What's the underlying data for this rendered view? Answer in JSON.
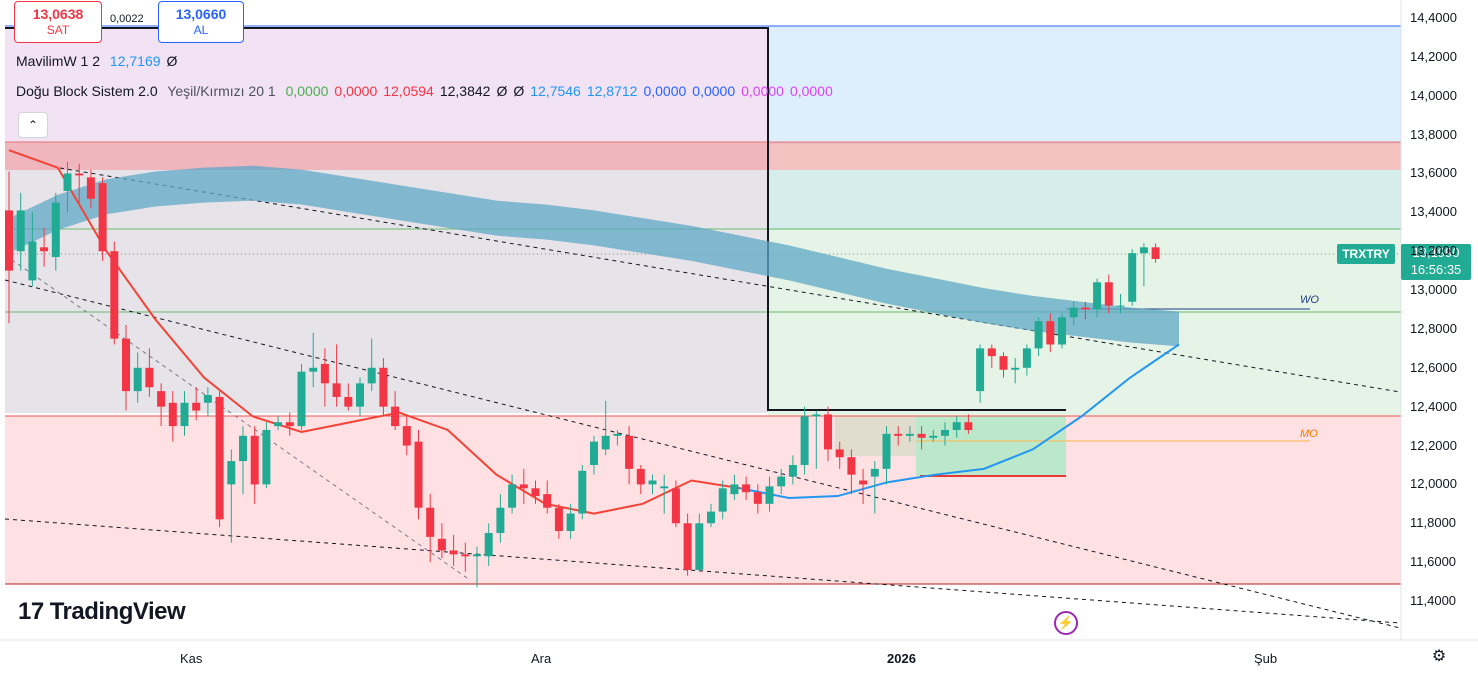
{
  "trade": {
    "sell_price": "13,0638",
    "sell_label": "SAT",
    "spread": "0,0022",
    "buy_price": "13,0660",
    "buy_label": "AL"
  },
  "indicators": [
    {
      "name": "MavilimW 1 2",
      "values": [
        {
          "text": "12,7169",
          "color": "#2196f3"
        },
        {
          "text": "Ø",
          "color": "#131722"
        }
      ]
    },
    {
      "name": "Doğu Block Sistem 2.0",
      "params": "Yeşil/Kırmızı 20 1",
      "values": [
        {
          "text": "0,0000",
          "color": "#4caf50"
        },
        {
          "text": "0,0000",
          "color": "#f23645"
        },
        {
          "text": "12,0594",
          "color": "#f23645"
        },
        {
          "text": "12,3842",
          "color": "#131722"
        },
        {
          "text": "Ø",
          "color": "#131722"
        },
        {
          "text": "Ø",
          "color": "#131722"
        },
        {
          "text": "12,7546",
          "color": "#2196f3"
        },
        {
          "text": "12,8712",
          "color": "#2196f3"
        },
        {
          "text": "0,0000",
          "color": "#2962ff"
        },
        {
          "text": "0,0000",
          "color": "#2962ff"
        },
        {
          "text": "0,0000",
          "color": "#e040fb"
        },
        {
          "text": "0,0000",
          "color": "#e040fb"
        }
      ]
    }
  ],
  "collapse_icon": "chevron-up-icon",
  "logo_text": "TradingView",
  "ticker": "TRXTRY",
  "last_price": "13,1990",
  "countdown": "16:56:35",
  "level_labels": {
    "upper": "WO",
    "lower": "MO"
  },
  "colors": {
    "up": "#22ab94",
    "down": "#f23645",
    "accent": "#2962ff",
    "mavilim": "#2196f3"
  },
  "chart_data": {
    "type": "candlestick",
    "y_ticks": [
      "14,4000",
      "14,2000",
      "14,0000",
      "13,8000",
      "13,6000",
      "13,4000",
      "13,2000",
      "13,0000",
      "12,8000",
      "12,6000",
      "12,4000",
      "12,2000",
      "12,0000",
      "11,8000",
      "11,6000",
      "11,4000"
    ],
    "ylim": [
      11.22,
      14.51
    ],
    "x_labels": [
      "Kas",
      "Ara",
      "2026",
      "Şub"
    ],
    "candles": [
      [
        13.41,
        13.1,
        13.61,
        12.83
      ],
      [
        13.2,
        13.41,
        13.5,
        13.1
      ],
      [
        13.05,
        13.25,
        13.4,
        13.02
      ],
      [
        13.22,
        13.2,
        13.32,
        13.12
      ],
      [
        13.17,
        13.45,
        13.5,
        13.1
      ],
      [
        13.51,
        13.6,
        13.66,
        13.4
      ],
      [
        13.6,
        13.59,
        13.65,
        13.45
      ],
      [
        13.58,
        13.47,
        13.62,
        13.42
      ],
      [
        13.55,
        13.2,
        13.58,
        13.15
      ],
      [
        13.2,
        12.75,
        13.25,
        12.72
      ],
      [
        12.75,
        12.48,
        12.82,
        12.38
      ],
      [
        12.48,
        12.6,
        12.68,
        12.42
      ],
      [
        12.6,
        12.5,
        12.7,
        12.45
      ],
      [
        12.48,
        12.4,
        12.52,
        12.3
      ],
      [
        12.42,
        12.3,
        12.48,
        12.22
      ],
      [
        12.3,
        12.42,
        12.48,
        12.25
      ],
      [
        12.42,
        12.38,
        12.5,
        12.33
      ],
      [
        12.42,
        12.46,
        12.5,
        12.35
      ],
      [
        12.45,
        11.82,
        12.48,
        11.78
      ],
      [
        12.0,
        12.12,
        12.18,
        11.7
      ],
      [
        12.12,
        12.25,
        12.3,
        11.95
      ],
      [
        12.25,
        12.0,
        12.3,
        11.9
      ],
      [
        12.0,
        12.28,
        12.32,
        11.98
      ],
      [
        12.3,
        12.32,
        12.35,
        12.28
      ],
      [
        12.32,
        12.3,
        12.37,
        12.25
      ],
      [
        12.3,
        12.58,
        12.62,
        12.28
      ],
      [
        12.58,
        12.6,
        12.78,
        12.5
      ],
      [
        12.62,
        12.52,
        12.7,
        12.4
      ],
      [
        12.52,
        12.45,
        12.72,
        12.4
      ],
      [
        12.45,
        12.4,
        12.52,
        12.38
      ],
      [
        12.4,
        12.52,
        12.55,
        12.35
      ],
      [
        12.52,
        12.6,
        12.75,
        12.48
      ],
      [
        12.6,
        12.4,
        12.65,
        12.35
      ],
      [
        12.4,
        12.3,
        12.48,
        12.28
      ],
      [
        12.3,
        12.2,
        12.35,
        12.15
      ],
      [
        12.22,
        11.88,
        12.28,
        11.82
      ],
      [
        11.88,
        11.73,
        11.95,
        11.6
      ],
      [
        11.72,
        11.66,
        11.8,
        11.62
      ],
      [
        11.66,
        11.64,
        11.74,
        11.58
      ],
      [
        11.64,
        11.63,
        11.7,
        11.55
      ],
      [
        11.63,
        11.64,
        11.68,
        11.47
      ],
      [
        11.63,
        11.75,
        11.8,
        11.58
      ],
      [
        11.75,
        11.88,
        11.95,
        11.7
      ],
      [
        11.88,
        12.0,
        12.05,
        11.85
      ],
      [
        12.0,
        11.98,
        12.08,
        11.9
      ],
      [
        11.98,
        11.94,
        12.02,
        11.9
      ],
      [
        11.95,
        11.88,
        12.02,
        11.85
      ],
      [
        11.88,
        11.76,
        11.9,
        11.72
      ],
      [
        11.76,
        11.85,
        11.9,
        11.72
      ],
      [
        11.85,
        12.07,
        12.1,
        11.82
      ],
      [
        12.1,
        12.22,
        12.25,
        12.05
      ],
      [
        12.18,
        12.25,
        12.43,
        12.15
      ],
      [
        12.25,
        12.26,
        12.28,
        12.2
      ],
      [
        12.25,
        12.08,
        12.3,
        12.0
      ],
      [
        12.08,
        12.0,
        12.1,
        11.95
      ],
      [
        12.0,
        12.02,
        12.05,
        11.95
      ],
      [
        11.98,
        11.99,
        12.05,
        11.85
      ],
      [
        11.98,
        11.8,
        12.02,
        11.78
      ],
      [
        11.8,
        11.56,
        11.85,
        11.53
      ],
      [
        11.56,
        11.8,
        11.85,
        11.55
      ],
      [
        11.8,
        11.86,
        11.9,
        11.78
      ],
      [
        11.86,
        11.98,
        12.02,
        11.82
      ],
      [
        11.95,
        12.0,
        12.05,
        11.92
      ],
      [
        12.0,
        11.96,
        12.04,
        11.92
      ],
      [
        11.96,
        11.9,
        12.0,
        11.85
      ],
      [
        11.9,
        11.99,
        12.04,
        11.86
      ],
      [
        11.99,
        12.04,
        12.08,
        11.95
      ],
      [
        12.04,
        12.1,
        12.15,
        12.0
      ],
      [
        12.1,
        12.35,
        12.4,
        12.05
      ],
      [
        12.35,
        12.36,
        12.38,
        12.08
      ],
      [
        12.36,
        12.18,
        12.4,
        12.12
      ],
      [
        12.18,
        12.14,
        12.22,
        12.08
      ],
      [
        12.14,
        12.05,
        12.18,
        11.95
      ],
      [
        12.02,
        12.0,
        12.08,
        11.9
      ],
      [
        12.04,
        12.08,
        12.12,
        11.85
      ],
      [
        12.08,
        12.26,
        12.3,
        12.0
      ],
      [
        12.26,
        12.25,
        12.3,
        12.2
      ],
      [
        12.25,
        12.26,
        12.3,
        12.22
      ],
      [
        12.26,
        12.24,
        12.3,
        12.18
      ],
      [
        12.24,
        12.25,
        12.28,
        12.22
      ],
      [
        12.25,
        12.28,
        12.32,
        12.2
      ],
      [
        12.28,
        12.32,
        12.35,
        12.24
      ],
      [
        12.32,
        12.28,
        12.36,
        12.26
      ],
      [
        12.48,
        12.7,
        12.72,
        12.42
      ],
      [
        12.7,
        12.66,
        12.72,
        12.6
      ],
      [
        12.66,
        12.59,
        12.68,
        12.55
      ],
      [
        12.59,
        12.6,
        12.65,
        12.52
      ],
      [
        12.6,
        12.7,
        12.72,
        12.56
      ],
      [
        12.7,
        12.84,
        12.86,
        12.66
      ],
      [
        12.84,
        12.72,
        12.88,
        12.68
      ],
      [
        12.72,
        12.86,
        12.88,
        12.7
      ],
      [
        12.86,
        12.91,
        12.94,
        12.82
      ],
      [
        12.91,
        12.9,
        12.94,
        12.85
      ],
      [
        12.9,
        13.04,
        13.06,
        12.86
      ],
      [
        13.04,
        12.92,
        13.08,
        12.88
      ],
      [
        12.92,
        12.92,
        12.98,
        12.88
      ],
      [
        12.94,
        13.19,
        13.21,
        12.92
      ],
      [
        13.19,
        13.22,
        13.24,
        13.02
      ],
      [
        13.22,
        13.16,
        13.24,
        13.14
      ]
    ],
    "series": [
      {
        "name": "MavilimW",
        "values": [
          [
            0,
            13.72
          ],
          [
            5,
            13.63
          ],
          [
            10,
            13.2
          ],
          [
            15,
            12.85
          ],
          [
            20,
            12.55
          ],
          [
            25,
            12.35
          ],
          [
            30,
            12.27
          ],
          [
            35,
            12.32
          ],
          [
            40,
            12.37
          ],
          [
            45,
            12.28
          ],
          [
            50,
            12.05
          ],
          [
            55,
            11.9
          ],
          [
            60,
            11.85
          ],
          [
            65,
            11.9
          ],
          [
            70,
            12.02
          ],
          [
            75,
            11.98
          ],
          [
            80,
            11.93
          ],
          [
            85,
            11.94
          ],
          [
            90,
            12.01
          ],
          [
            95,
            12.05
          ],
          [
            100,
            12.08
          ],
          [
            105,
            12.18
          ],
          [
            110,
            12.35
          ],
          [
            115,
            12.55
          ],
          [
            120,
            12.72
          ]
        ]
      },
      {
        "name": "Doğu Block Sistem 2.0",
        "values": [
          [
            0,
            13.28
          ],
          [
            5,
            13.4
          ],
          [
            10,
            13.48
          ],
          [
            15,
            13.52
          ],
          [
            20,
            13.54
          ],
          [
            25,
            13.55
          ],
          [
            30,
            13.53
          ],
          [
            35,
            13.49
          ],
          [
            40,
            13.45
          ],
          [
            45,
            13.41
          ],
          [
            50,
            13.37
          ],
          [
            55,
            13.35
          ],
          [
            60,
            13.32
          ],
          [
            65,
            13.28
          ],
          [
            70,
            13.24
          ],
          [
            75,
            13.19
          ],
          [
            80,
            13.14
          ],
          [
            85,
            13.08
          ],
          [
            90,
            13.02
          ],
          [
            95,
            12.97
          ],
          [
            100,
            12.92
          ],
          [
            105,
            12.88
          ],
          [
            110,
            12.85
          ],
          [
            115,
            12.82
          ],
          [
            120,
            12.8
          ]
        ]
      }
    ]
  }
}
